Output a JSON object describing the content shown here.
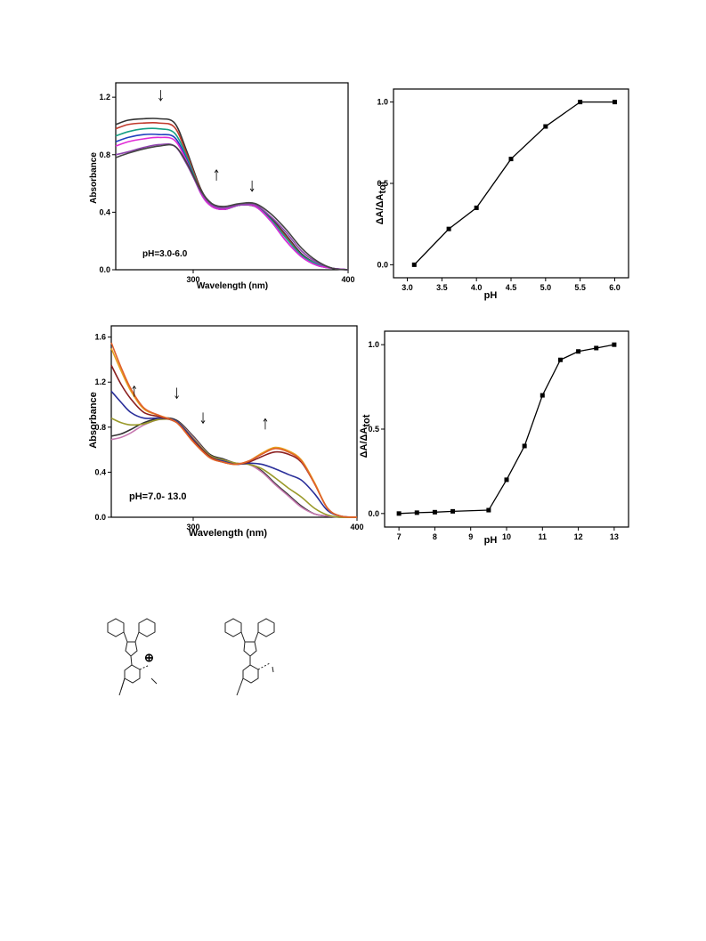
{
  "chart_data": [
    {
      "id": "chart1",
      "type": "line",
      "xlabel": "Wavelength (nm)",
      "ylabel": "Absorbance",
      "xlim": [
        250,
        400
      ],
      "ylim": [
        0,
        1.3
      ],
      "xticks": [
        300,
        400
      ],
      "yticks": [
        0.0,
        0.4,
        0.8,
        1.2
      ],
      "xtick_labels": [
        "300",
        "400"
      ],
      "ytick_labels": [
        "0.0",
        "0.4",
        "0.8",
        "1.2"
      ],
      "annotation": "pH=3.0-6.0",
      "arrows": [
        {
          "x": 279,
          "y_start": 1.25,
          "direction": "down"
        },
        {
          "x": 315,
          "y_start": 0.62,
          "direction": "up"
        },
        {
          "x": 338,
          "y_start": 0.62,
          "direction": "down"
        }
      ],
      "series": [
        {
          "color": "#333333",
          "x": [
            250,
            258,
            268,
            278,
            288,
            296,
            305,
            312,
            320,
            330,
            340,
            350,
            360,
            370,
            380,
            390,
            400
          ],
          "y": [
            1.01,
            1.04,
            1.05,
            1.05,
            1.02,
            0.82,
            0.56,
            0.46,
            0.43,
            0.45,
            0.44,
            0.36,
            0.24,
            0.11,
            0.04,
            0.01,
            0.0
          ]
        },
        {
          "color": "#c0392b",
          "x": [
            250,
            258,
            268,
            278,
            288,
            296,
            305,
            312,
            320,
            330,
            340,
            350,
            360,
            370,
            380,
            390,
            400
          ],
          "y": [
            0.98,
            1.01,
            1.02,
            1.02,
            0.99,
            0.8,
            0.55,
            0.45,
            0.42,
            0.45,
            0.44,
            0.35,
            0.23,
            0.1,
            0.04,
            0.01,
            0.0
          ]
        },
        {
          "color": "#16a085",
          "x": [
            250,
            258,
            268,
            278,
            288,
            296,
            305,
            312,
            320,
            330,
            340,
            350,
            360,
            370,
            380,
            390,
            400
          ],
          "y": [
            0.93,
            0.96,
            0.98,
            0.98,
            0.95,
            0.78,
            0.54,
            0.45,
            0.42,
            0.45,
            0.44,
            0.35,
            0.22,
            0.1,
            0.04,
            0.01,
            0.0
          ]
        },
        {
          "color": "#1f3fbf",
          "x": [
            250,
            258,
            268,
            278,
            288,
            296,
            305,
            312,
            320,
            330,
            340,
            350,
            360,
            370,
            380,
            390,
            400
          ],
          "y": [
            0.89,
            0.92,
            0.94,
            0.94,
            0.92,
            0.76,
            0.53,
            0.44,
            0.42,
            0.45,
            0.44,
            0.34,
            0.2,
            0.09,
            0.03,
            0.01,
            0.0
          ]
        },
        {
          "color": "#e02bd6",
          "x": [
            250,
            258,
            268,
            278,
            288,
            296,
            305,
            312,
            320,
            330,
            340,
            350,
            360,
            370,
            380,
            390,
            400
          ],
          "y": [
            0.86,
            0.89,
            0.91,
            0.92,
            0.9,
            0.75,
            0.53,
            0.44,
            0.42,
            0.45,
            0.44,
            0.34,
            0.2,
            0.09,
            0.03,
            0.01,
            0.0
          ]
        },
        {
          "color": "#8e44ad",
          "x": [
            250,
            258,
            268,
            278,
            288,
            296,
            305,
            312,
            320,
            330,
            340,
            350,
            360,
            370,
            380,
            390,
            400
          ],
          "y": [
            0.8,
            0.82,
            0.85,
            0.87,
            0.86,
            0.73,
            0.54,
            0.45,
            0.43,
            0.45,
            0.45,
            0.37,
            0.26,
            0.13,
            0.05,
            0.01,
            0.0
          ]
        },
        {
          "color": "#444444",
          "x": [
            250,
            258,
            268,
            278,
            288,
            296,
            305,
            312,
            320,
            330,
            340,
            350,
            360,
            370,
            380,
            390,
            400
          ],
          "y": [
            0.78,
            0.81,
            0.84,
            0.86,
            0.86,
            0.74,
            0.55,
            0.46,
            0.44,
            0.46,
            0.46,
            0.39,
            0.28,
            0.15,
            0.06,
            0.01,
            0.0
          ]
        }
      ]
    },
    {
      "id": "chart2",
      "type": "line",
      "xlabel": "pH",
      "ylabel": "ΔA/ΔAtot",
      "xlim": [
        2.8,
        6.2
      ],
      "ylim": [
        -0.08,
        1.08
      ],
      "xticks": [
        3.0,
        3.5,
        4.0,
        4.5,
        5.0,
        5.5,
        6.0
      ],
      "yticks": [
        0.0,
        0.5,
        1.0
      ],
      "xtick_labels": [
        "3.0",
        "3.5",
        "4.0",
        "4.5",
        "5.0",
        "5.5",
        "6.0"
      ],
      "ytick_labels": [
        "0.0",
        "0.5",
        "1.0"
      ],
      "series": [
        {
          "color": "#000000",
          "x": [
            3.1,
            3.6,
            4.0,
            4.5,
            5.0,
            5.5,
            6.0
          ],
          "y": [
            0.0,
            0.22,
            0.35,
            0.65,
            0.85,
            1.0,
            1.0
          ]
        }
      ]
    },
    {
      "id": "chart3",
      "type": "line",
      "xlabel": "Wavelength (nm)",
      "ylabel": "Absorbance",
      "xlim": [
        250,
        400
      ],
      "ylim": [
        0,
        1.7
      ],
      "xticks": [
        300,
        400
      ],
      "yticks": [
        0.0,
        0.4,
        0.8,
        1.2,
        1.6
      ],
      "xtick_labels": [
        "300",
        "400"
      ],
      "ytick_labels": [
        "0.0",
        "0.4",
        "0.8",
        "1.2",
        "1.6"
      ],
      "annotation": "pH=7.0- 13.0",
      "arrows": [
        {
          "x": 264,
          "y_start": 1.07,
          "direction": "up"
        },
        {
          "x": 290,
          "y_start": 1.15,
          "direction": "down"
        },
        {
          "x": 306,
          "y_start": 0.93,
          "direction": "down"
        },
        {
          "x": 344,
          "y_start": 0.78,
          "direction": "up"
        }
      ],
      "series": [
        {
          "color": "#333333",
          "x": [
            250,
            256,
            262,
            270,
            280,
            290,
            300,
            310,
            318,
            326,
            334,
            342,
            350,
            358,
            366,
            374,
            382,
            390,
            400
          ],
          "y": [
            0.72,
            0.74,
            0.78,
            0.84,
            0.88,
            0.86,
            0.72,
            0.56,
            0.52,
            0.48,
            0.47,
            0.41,
            0.3,
            0.2,
            0.1,
            0.03,
            0.01,
            0.0,
            0.0
          ]
        },
        {
          "color": "#c678b0",
          "x": [
            250,
            256,
            262,
            270,
            280,
            290,
            300,
            310,
            318,
            326,
            334,
            342,
            350,
            358,
            366,
            374,
            382,
            390,
            400
          ],
          "y": [
            0.69,
            0.71,
            0.75,
            0.82,
            0.87,
            0.85,
            0.71,
            0.55,
            0.51,
            0.48,
            0.47,
            0.4,
            0.29,
            0.19,
            0.09,
            0.03,
            0.01,
            0.0,
            0.0
          ]
        },
        {
          "color": "#9a9a2a",
          "x": [
            250,
            256,
            262,
            270,
            280,
            290,
            300,
            310,
            318,
            326,
            334,
            342,
            350,
            358,
            366,
            374,
            382,
            390,
            400
          ],
          "y": [
            0.88,
            0.84,
            0.82,
            0.83,
            0.87,
            0.85,
            0.7,
            0.55,
            0.51,
            0.48,
            0.47,
            0.43,
            0.35,
            0.26,
            0.18,
            0.08,
            0.02,
            0.0,
            0.0
          ]
        },
        {
          "color": "#2a2f9a",
          "x": [
            250,
            256,
            262,
            270,
            280,
            290,
            300,
            310,
            318,
            326,
            334,
            342,
            350,
            358,
            366,
            374,
            382,
            390,
            400
          ],
          "y": [
            1.12,
            1.02,
            0.93,
            0.88,
            0.88,
            0.85,
            0.69,
            0.54,
            0.5,
            0.47,
            0.48,
            0.47,
            0.43,
            0.38,
            0.33,
            0.21,
            0.06,
            0.01,
            0.0
          ]
        },
        {
          "color": "#8b2020",
          "x": [
            250,
            256,
            262,
            270,
            280,
            290,
            300,
            310,
            318,
            326,
            334,
            342,
            350,
            358,
            366,
            374,
            382,
            390,
            400
          ],
          "y": [
            1.35,
            1.18,
            1.05,
            0.93,
            0.89,
            0.84,
            0.68,
            0.54,
            0.49,
            0.47,
            0.49,
            0.54,
            0.58,
            0.56,
            0.49,
            0.3,
            0.08,
            0.01,
            0.0
          ]
        },
        {
          "color": "#e6a11f",
          "x": [
            250,
            256,
            262,
            270,
            280,
            290,
            300,
            310,
            318,
            326,
            334,
            342,
            350,
            358,
            366,
            374,
            382,
            390,
            400
          ],
          "y": [
            1.5,
            1.3,
            1.12,
            0.96,
            0.9,
            0.84,
            0.67,
            0.53,
            0.49,
            0.47,
            0.5,
            0.57,
            0.62,
            0.59,
            0.51,
            0.31,
            0.08,
            0.01,
            0.0
          ]
        },
        {
          "color": "#e0602b",
          "x": [
            250,
            256,
            262,
            270,
            280,
            290,
            300,
            310,
            318,
            326,
            334,
            342,
            350,
            358,
            366,
            374,
            382,
            390,
            400
          ],
          "y": [
            1.55,
            1.33,
            1.14,
            0.97,
            0.9,
            0.84,
            0.67,
            0.53,
            0.49,
            0.47,
            0.5,
            0.56,
            0.61,
            0.58,
            0.5,
            0.3,
            0.08,
            0.01,
            0.0
          ]
        }
      ]
    },
    {
      "id": "chart4",
      "type": "line",
      "xlabel": "pH",
      "ylabel": "ΔA/ΔAtot",
      "xlim": [
        6.6,
        13.4
      ],
      "ylim": [
        -0.08,
        1.08
      ],
      "xticks": [
        7,
        8,
        9,
        10,
        11,
        12,
        13
      ],
      "yticks": [
        0.0,
        0.5,
        1.0
      ],
      "xtick_labels": [
        "7",
        "8",
        "9",
        "10",
        "11",
        "12",
        "13"
      ],
      "ytick_labels": [
        "0.0",
        "0.5",
        "1.0"
      ],
      "series": [
        {
          "color": "#000000",
          "x": [
            7.0,
            7.5,
            8.0,
            8.5,
            9.5,
            10.0,
            10.5,
            11.0,
            11.5,
            12.0,
            12.5,
            13.0
          ],
          "y": [
            0.0,
            0.005,
            0.008,
            0.013,
            0.02,
            0.2,
            0.4,
            0.7,
            0.91,
            0.96,
            0.98,
            1.0
          ]
        }
      ]
    }
  ],
  "figure": {
    "charge_label": "⊕"
  }
}
